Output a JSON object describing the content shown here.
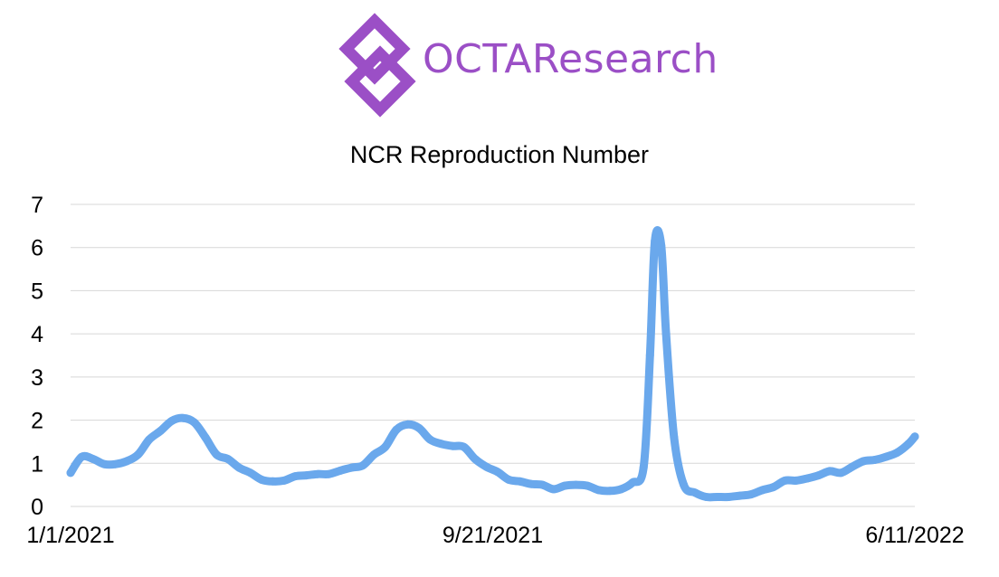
{
  "logo": {
    "text": "OCTAResearch",
    "color": "#9b4fc6"
  },
  "chart_data": {
    "type": "line",
    "title": "NCR Reproduction Number",
    "xlabel": "",
    "ylabel": "",
    "x_start": "1/1/2021",
    "x_end": "6/11/2022",
    "x_tick_labels": [
      "1/1/2021",
      "9/21/2021",
      "6/11/2022"
    ],
    "y_tick_labels": [
      "0",
      "1",
      "2",
      "3",
      "4",
      "5",
      "6",
      "7"
    ],
    "ylim": [
      0,
      7
    ],
    "grid": true,
    "legend": "none",
    "line_color": "#6aa8ec",
    "series": [
      {
        "x": [
          "1/1/2021",
          "1/8/2021",
          "1/15/2021",
          "1/22/2021",
          "1/29/2021",
          "2/5/2021",
          "2/12/2021",
          "2/19/2021",
          "2/26/2021",
          "3/5/2021",
          "3/12/2021",
          "3/19/2021",
          "3/26/2021",
          "4/2/2021",
          "4/9/2021",
          "4/16/2021",
          "4/23/2021",
          "4/30/2021",
          "5/7/2021",
          "5/14/2021",
          "5/21/2021",
          "5/28/2021",
          "6/4/2021",
          "6/11/2021",
          "6/18/2021",
          "6/25/2021",
          "7/2/2021",
          "7/9/2021",
          "7/16/2021",
          "7/23/2021",
          "7/30/2021",
          "8/6/2021",
          "8/13/2021",
          "8/20/2021",
          "8/27/2021",
          "9/3/2021",
          "9/10/2021",
          "9/17/2021",
          "9/24/2021",
          "10/1/2021",
          "10/8/2021",
          "10/15/2021",
          "10/22/2021",
          "10/29/2021",
          "11/5/2021",
          "11/12/2021",
          "11/19/2021",
          "11/26/2021",
          "12/3/2021",
          "12/10/2021",
          "12/17/2021",
          "12/24/2021",
          "12/28/2021",
          "12/31/2021",
          "1/4/2022",
          "1/7/2022",
          "1/12/2022",
          "1/18/2022",
          "1/25/2022",
          "2/1/2022",
          "2/8/2022",
          "2/15/2022",
          "2/22/2022",
          "3/1/2022",
          "3/8/2022",
          "3/15/2022",
          "3/22/2022",
          "3/29/2022",
          "4/5/2022",
          "4/12/2022",
          "4/19/2022",
          "4/26/2022",
          "5/3/2022",
          "5/10/2022",
          "5/17/2022",
          "5/24/2022",
          "5/31/2022",
          "6/7/2022",
          "6/11/2022"
        ],
        "values": [
          0.78,
          1.15,
          1.1,
          0.98,
          0.98,
          1.05,
          1.2,
          1.55,
          1.75,
          1.98,
          2.05,
          1.95,
          1.6,
          1.2,
          1.1,
          0.9,
          0.78,
          0.62,
          0.58,
          0.6,
          0.7,
          0.72,
          0.75,
          0.75,
          0.83,
          0.9,
          0.95,
          1.2,
          1.38,
          1.78,
          1.9,
          1.82,
          1.55,
          1.45,
          1.4,
          1.38,
          1.1,
          0.92,
          0.8,
          0.62,
          0.58,
          0.52,
          0.5,
          0.4,
          0.48,
          0.5,
          0.48,
          0.38,
          0.36,
          0.4,
          0.55,
          0.9,
          3.5,
          6.15,
          6.05,
          4.0,
          1.6,
          0.5,
          0.32,
          0.22,
          0.22,
          0.22,
          0.25,
          0.28,
          0.38,
          0.45,
          0.6,
          0.6,
          0.65,
          0.72,
          0.82,
          0.78,
          0.92,
          1.05,
          1.08,
          1.15,
          1.25,
          1.45,
          1.62
        ]
      }
    ]
  }
}
